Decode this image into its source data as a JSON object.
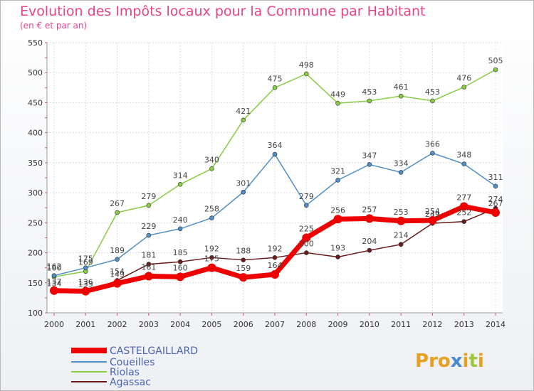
{
  "title": "Evolution des Impôts locaux pour la Commune par Habitant",
  "subtitle": "(en € et par an)",
  "logo_text": "Proxiti",
  "chart_data": {
    "type": "line",
    "title": "Evolution des Impôts locaux pour la Commune par Habitant",
    "ylabel": "(en € et par an)",
    "xlabel": "",
    "ylim": [
      100,
      550
    ],
    "yticks": [
      100,
      150,
      200,
      250,
      300,
      350,
      400,
      450,
      500,
      550
    ],
    "categories": [
      "2000",
      "2001",
      "2002",
      "2003",
      "2004",
      "2005",
      "2006",
      "2007",
      "2008",
      "2009",
      "2010",
      "2011",
      "2012",
      "2013",
      "2014"
    ],
    "grid": true,
    "legend_position": "bottom-left",
    "series": [
      {
        "name": "CASTELGAILLARD",
        "color": "#ee0000",
        "values": [
          137,
          136,
          149,
          161,
          160,
          175,
          159,
          164,
          225,
          256,
          257,
          253,
          254,
          277,
          267
        ]
      },
      {
        "name": "Coueilles",
        "color": "#4f8fc8",
        "values": [
          162,
          175,
          189,
          229,
          240,
          258,
          301,
          364,
          279,
          321,
          347,
          334,
          366,
          348,
          311
        ]
      },
      {
        "name": "Riolas",
        "color": "#88cc44",
        "values": [
          160,
          169,
          267,
          279,
          314,
          340,
          421,
          475,
          498,
          449,
          453,
          461,
          453,
          476,
          505
        ]
      },
      {
        "name": "Agassac",
        "color": "#6b1a1a",
        "values": [
          134,
          133,
          154,
          181,
          185,
          192,
          188,
          192,
          200,
          193,
          204,
          214,
          249,
          252,
          274
        ]
      }
    ]
  }
}
